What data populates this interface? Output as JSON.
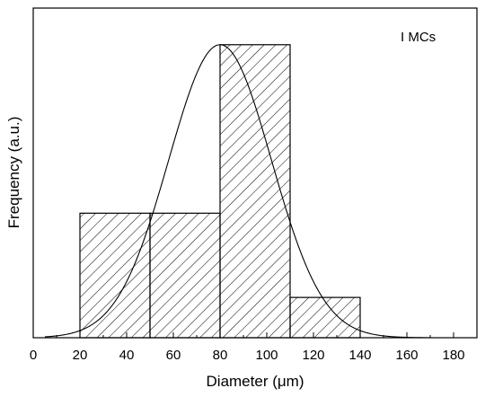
{
  "chart_data": {
    "type": "bar",
    "title": "",
    "annotation": "I MCs",
    "xlabel": "Diameter (μm)",
    "ylabel": "Frequency (a.u.)",
    "xlim": [
      0,
      190
    ],
    "ylim": [
      0,
      4.5
    ],
    "x_ticks": [
      0,
      20,
      40,
      60,
      80,
      100,
      120,
      140,
      160,
      180
    ],
    "y_ticks_labeled": false,
    "grid": false,
    "legend": "none",
    "bins": [
      {
        "x0": 20,
        "x1": 50,
        "value": 1.7
      },
      {
        "x0": 50,
        "x1": 80,
        "value": 1.7
      },
      {
        "x0": 80,
        "x1": 110,
        "value": 4.0
      },
      {
        "x0": 110,
        "x1": 140,
        "value": 0.55
      }
    ],
    "fit_curve": {
      "type": "gaussian",
      "center": 80,
      "sigma": 22,
      "peak": 4.0,
      "x_range": [
        5,
        170
      ]
    },
    "hatch": "diagonal",
    "color": "#000000"
  }
}
